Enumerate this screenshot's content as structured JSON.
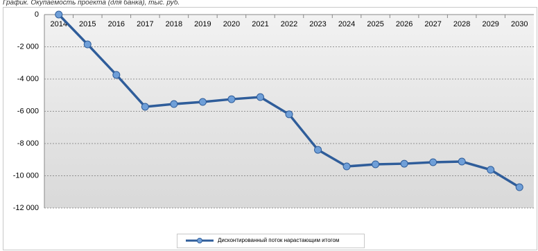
{
  "chart_data": {
    "type": "line",
    "title": "График. Окупаемость проекта (для банка), тыс. руб.",
    "categories": [
      "2014",
      "2015",
      "2016",
      "2017",
      "2018",
      "2019",
      "2020",
      "2021",
      "2022",
      "2023",
      "2024",
      "2025",
      "2026",
      "2027",
      "2028",
      "2029",
      "2030"
    ],
    "series": [
      {
        "name": "Дисконтированный поток нарастающим итогом",
        "color": "#2f5d9a",
        "values": [
          0,
          -1850,
          -3740,
          -5720,
          -5550,
          -5420,
          -5250,
          -5120,
          -6190,
          -8390,
          -9420,
          -9290,
          -9250,
          -9160,
          -9120,
          -9630,
          -10710
        ]
      }
    ],
    "ylim": [
      -12000,
      0
    ],
    "yticks": [
      0,
      {
        "value": -2000,
        "label": "-2 000"
      },
      {
        "value": -4000,
        "label": "-4 000"
      },
      {
        "value": -6000,
        "label": "-6 000"
      },
      {
        "value": -8000,
        "label": "-8 000"
      },
      {
        "value": -10000,
        "label": "-10 000"
      },
      {
        "value": -12000,
        "label": "-12 000"
      }
    ],
    "grid": true
  }
}
